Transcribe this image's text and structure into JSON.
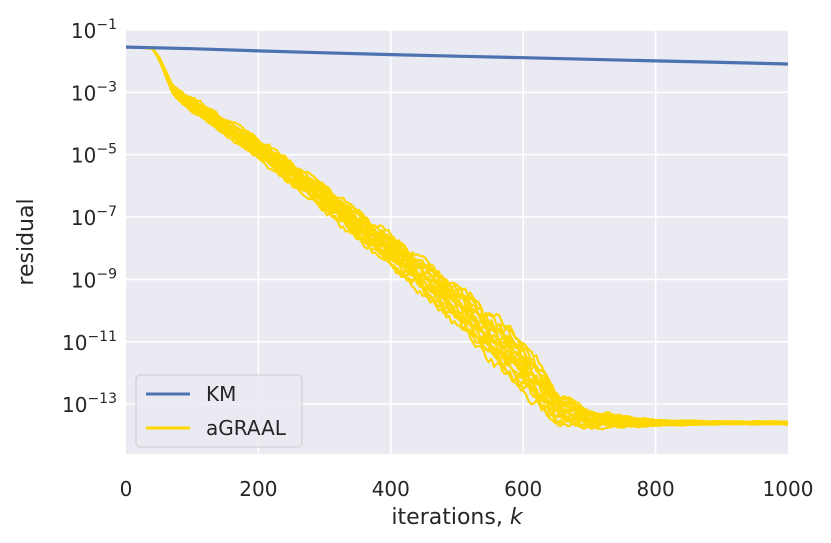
{
  "chart_data": {
    "type": "line",
    "title": "",
    "xlabel_text": "iterations, ",
    "xlabel_var": "k",
    "ylabel": "residual",
    "xlim": [
      0,
      1000
    ],
    "ylim_log10": [
      -14.6,
      -1
    ],
    "y_scale": "log",
    "grid": true,
    "background": "#EAEAF2",
    "legend_position": "lower-left",
    "x_ticks": [
      0,
      200,
      400,
      600,
      800,
      1000
    ],
    "y_ticks_log10": [
      -1,
      -3,
      -5,
      -7,
      -9,
      -11,
      -13
    ],
    "series": [
      {
        "name": "KM",
        "color": "#4C72B0",
        "x": [
          0,
          100,
          200,
          300,
          400,
          500,
          600,
          700,
          800,
          900,
          1000
        ],
        "y_log10": [
          -1.55,
          -1.6,
          -1.67,
          -1.73,
          -1.79,
          -1.84,
          -1.89,
          -1.94,
          -1.99,
          -2.04,
          -2.09
        ]
      },
      {
        "name": "aGRAAL",
        "color": "#FFD700",
        "x": [
          0,
          20,
          40,
          50,
          60,
          70,
          80,
          100,
          150,
          200,
          300,
          400,
          500,
          600,
          650,
          700,
          800,
          900,
          1000
        ],
        "y_log10": [
          -1.55,
          -1.55,
          -1.6,
          -1.9,
          -2.4,
          -2.9,
          -3.1,
          -3.4,
          -4.1,
          -4.8,
          -6.4,
          -8.1,
          -9.8,
          -11.8,
          -13.1,
          -13.5,
          -13.6,
          -13.6,
          -13.6
        ],
        "band_width_log10": [
          0,
          0,
          0,
          0.05,
          0.1,
          0.15,
          0.2,
          0.25,
          0.3,
          0.35,
          0.45,
          0.55,
          0.7,
          0.9,
          0.6,
          0.3,
          0.1,
          0.05,
          0.05
        ],
        "num_runs": 20
      }
    ]
  }
}
